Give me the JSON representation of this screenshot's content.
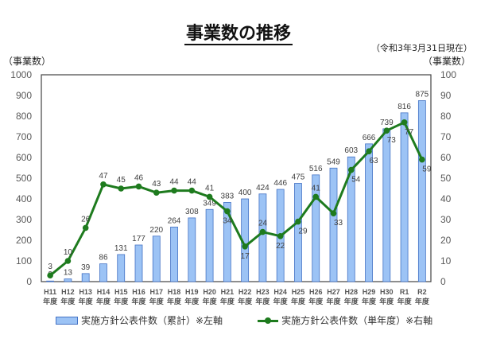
{
  "header": {
    "title": "事業数の推移",
    "as_of": "（令和3年3月31日現在）",
    "left_axis_label": "（事業数）",
    "right_axis_label": "（事業数）"
  },
  "legend": {
    "bar_label": "実施方針公表件数（累計）※左軸",
    "line_label": "実施方針公表件数（単年度）※右軸"
  },
  "colors": {
    "bar_fill": "#9cc3f5",
    "bar_stroke": "#4472c4",
    "line": "#1e7b1e",
    "axis_text": "#595959"
  },
  "chart_data": {
    "type": "bar+line",
    "title": "事業数の推移",
    "subtitle": "（令和3年3月31日現在）",
    "categories": [
      "H11年度",
      "H12年度",
      "H13年度",
      "H14年度",
      "H15年度",
      "H16年度",
      "H17年度",
      "H18年度",
      "H19年度",
      "H20年度",
      "H21年度",
      "H22年度",
      "H23年度",
      "H24年度",
      "H25年度",
      "H26年度",
      "H27年度",
      "H28年度",
      "H29年度",
      "H30年度",
      "R1年度",
      "R2年度"
    ],
    "category_top": [
      "H11",
      "H12",
      "H13",
      "H14",
      "H15",
      "H16",
      "H17",
      "H18",
      "H19",
      "H20",
      "H21",
      "H22",
      "H23",
      "H24",
      "H25",
      "H26",
      "H27",
      "H28",
      "H29",
      "H30",
      "R1",
      "R2"
    ],
    "category_bottom": "年度",
    "series": [
      {
        "name": "実施方針公表件数（累計）※左軸",
        "type": "bar",
        "axis": "left",
        "values": [
          3,
          13,
          39,
          86,
          131,
          177,
          220,
          264,
          308,
          349,
          383,
          400,
          424,
          446,
          475,
          516,
          549,
          603,
          666,
          739,
          816,
          875
        ]
      },
      {
        "name": "実施方針公表件数（単年度）※右軸",
        "type": "line",
        "axis": "right",
        "values": [
          3,
          10,
          26,
          47,
          45,
          46,
          43,
          44,
          44,
          41,
          34,
          17,
          24,
          22,
          29,
          41,
          33,
          54,
          63,
          73,
          77,
          59
        ]
      }
    ],
    "ylabel": "（事業数）",
    "ylabel_right": "（事業数）",
    "ylim": [
      0,
      1000
    ],
    "ylim_right": [
      0,
      100
    ],
    "yticks": [
      0,
      100,
      200,
      300,
      400,
      500,
      600,
      700,
      800,
      900,
      1000
    ],
    "yticks_right": [
      0,
      10,
      20,
      30,
      40,
      50,
      60,
      70,
      80,
      90,
      100
    ],
    "grid": false,
    "legend_position": "bottom"
  }
}
